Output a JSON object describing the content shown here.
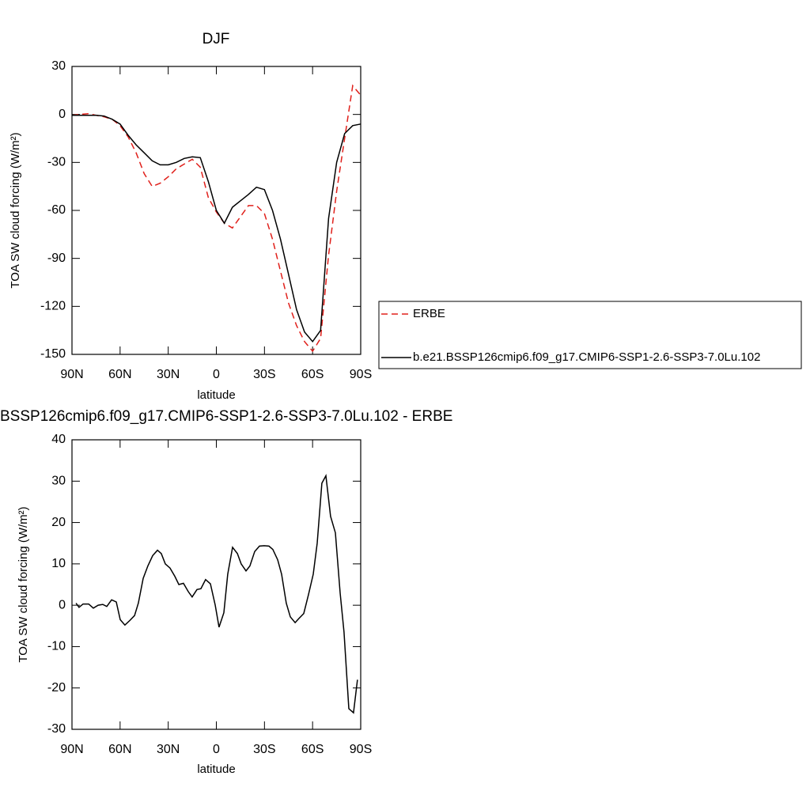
{
  "chart_data": [
    {
      "type": "line",
      "title": "DJF",
      "xlabel": "latitude",
      "ylabel": "TOA SW cloud forcing (W/m²)",
      "x": [
        90,
        85,
        80,
        75,
        70,
        65,
        60,
        55,
        50,
        45,
        40,
        35,
        30,
        25,
        20,
        15,
        10,
        5,
        0,
        -5,
        -10,
        -15,
        -20,
        -25,
        -30,
        -35,
        -40,
        -45,
        -50,
        -55,
        -60,
        -65,
        -70,
        -75,
        -80,
        -85,
        -90
      ],
      "series": [
        {
          "name": "ERBE",
          "color": "#e0201b",
          "dash": "dashed",
          "values": [
            -0.5,
            0,
            0.5,
            -0.5,
            -1.5,
            -3,
            -7,
            -14,
            -24,
            -37,
            -45,
            -43,
            -39,
            -34,
            -31,
            -28,
            -33,
            -52,
            -61,
            -68,
            -71,
            -64,
            -57,
            -57,
            -62,
            -78,
            -98,
            -118,
            -132,
            -142,
            -148,
            -140,
            -88,
            -48,
            -15,
            18,
            12
          ]
        },
        {
          "name": "b.e21.BSSP126cmip6.f09_g17.CMIP6-SSP1-2.6-SSP3-7.0Lu.102",
          "color": "#000000",
          "dash": "solid",
          "values": [
            -0.5,
            -0.5,
            -0.5,
            -0.5,
            -1,
            -3,
            -6,
            -13,
            -19,
            -24,
            -29,
            -31.5,
            -31.5,
            -30,
            -27.5,
            -26.5,
            -27,
            -42,
            -60,
            -68,
            -58,
            -54,
            -50,
            -45.5,
            -47,
            -60,
            -78,
            -100,
            -122,
            -136,
            -142,
            -135,
            -65,
            -30,
            -12,
            -7,
            -6
          ]
        }
      ],
      "legend": "right",
      "xlim": [
        90,
        -90
      ],
      "xticks": [
        {
          "value": 90,
          "label": "90N"
        },
        {
          "value": 60,
          "label": "60N"
        },
        {
          "value": 30,
          "label": "30N"
        },
        0,
        {
          "value": -30,
          "label": "30S"
        },
        {
          "value": -60,
          "label": "60S"
        },
        {
          "value": -90,
          "label": "90S"
        }
      ],
      "ylim": [
        -150,
        30
      ],
      "yticks": [
        30,
        0,
        -30,
        -60,
        -90,
        -120,
        -150
      ]
    },
    {
      "type": "line",
      "title": "BSSP126cmip6.f09_g17.CMIP6-SSP1-2.6-SSP3-7.0Lu.102 - ERBE",
      "xlabel": "latitude",
      "ylabel": "TOA SW cloud forcing (W/m²)",
      "x": [
        87.5,
        85.6,
        83.1,
        79.6,
        76.7,
        73.7,
        70.8,
        68.3,
        65.3,
        62.4,
        59.9,
        57,
        54,
        51,
        48.6,
        45.6,
        42.7,
        39.7,
        36.7,
        34.3,
        31.8,
        28.9,
        25.9,
        23.4,
        20.5,
        17.5,
        15.1,
        12.1,
        9.6,
        6.7,
        3.7,
        0.7,
        -1.7,
        -4.7,
        -7.1,
        -10.1,
        -13.1,
        -15.5,
        -18.5,
        -20.9,
        -23.9,
        -26.9,
        -29.8,
        -32.8,
        -35.2,
        -38.2,
        -40.7,
        -43.6,
        -46.1,
        -49.1,
        -51.5,
        -54.5,
        -57.4,
        -60.4,
        -62.9,
        -65.8,
        -68.3,
        -71.2,
        -74.2,
        -77.2,
        -79.6,
        -82.6,
        -85.5,
        -88
      ],
      "values": [
        0.5,
        -0.5,
        0.3,
        0.3,
        -0.7,
        0,
        0.2,
        -0.3,
        1.3,
        0.8,
        -3.5,
        -4.8,
        -3.7,
        -2.5,
        0.5,
        6.5,
        9.5,
        12,
        13.3,
        12.5,
        10,
        9,
        7,
        5,
        5.3,
        3.3,
        2,
        3.8,
        4,
        6.2,
        5.2,
        0,
        -5.3,
        -1.8,
        7.5,
        14,
        12.5,
        10,
        8.3,
        9.5,
        13,
        14.3,
        14.4,
        14.3,
        13.5,
        11,
        7.5,
        0.5,
        -2.8,
        -4.2,
        -3.2,
        -2,
        2.5,
        7.5,
        15,
        29.5,
        31.3,
        21.5,
        17.5,
        3,
        -6.5,
        -25,
        -26,
        -18
      ],
      "color": "#000000",
      "xlim": [
        90,
        -90
      ],
      "xticks": [
        {
          "value": 90,
          "label": "90N"
        },
        {
          "value": 60,
          "label": "60N"
        },
        {
          "value": 30,
          "label": "30N"
        },
        0,
        {
          "value": -30,
          "label": "30S"
        },
        {
          "value": -60,
          "label": "60S"
        },
        {
          "value": -90,
          "label": "90S"
        }
      ],
      "ylim": [
        -30,
        40
      ],
      "yticks": [
        40,
        30,
        20,
        10,
        0,
        -10,
        -20,
        -30
      ]
    }
  ]
}
